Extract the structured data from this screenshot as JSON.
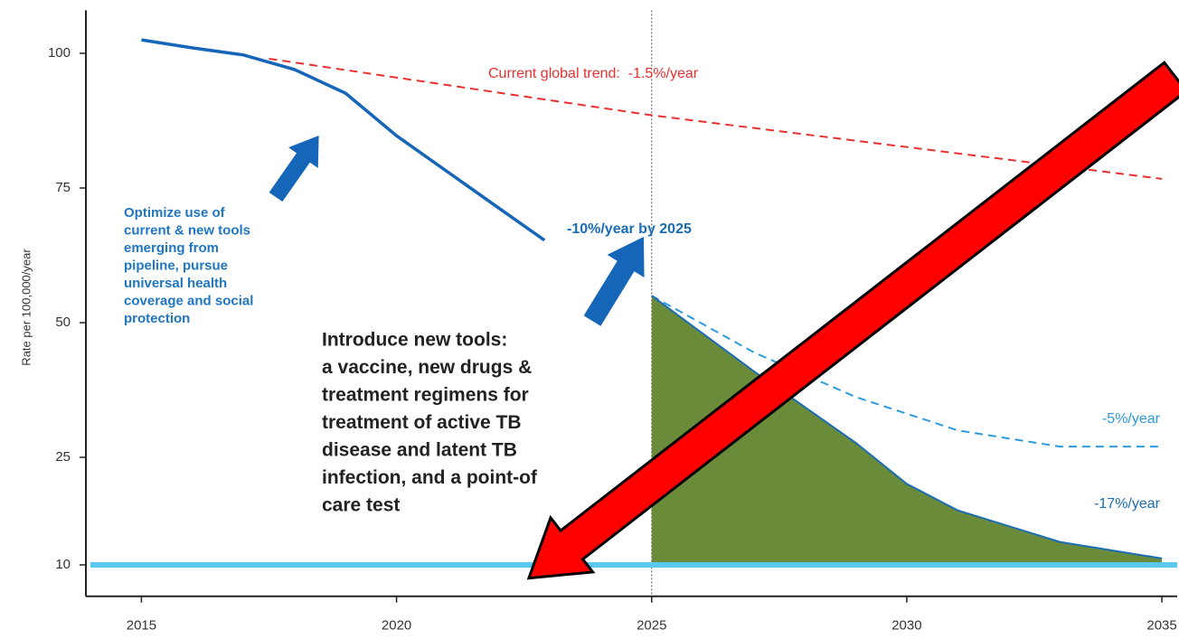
{
  "chart_data": {
    "type": "line",
    "y_label": "Rate per 100,000/year",
    "xlim": [
      2014,
      2035.3
    ],
    "xticks": [
      2015,
      2020,
      2025,
      2030,
      2035
    ],
    "ylim": [
      6,
      108
    ],
    "yticks": [
      10,
      25,
      50,
      75,
      100
    ],
    "vline": 2025,
    "series": [
      {
        "color": "#1565b8",
        "style": "solid",
        "x": [
          2015,
          2016,
          2017,
          2018,
          2019,
          2020,
          2021,
          2022,
          2022.9
        ],
        "values": [
          102.5,
          101,
          99.7,
          97,
          92.6,
          84.7,
          78,
          71.3,
          65.3
        ]
      },
      {
        "name": "Current global trend:  -1.5%/year",
        "color": "#e8312f",
        "style": "dashed",
        "x": [
          2017.5,
          2025,
          2035
        ],
        "values": [
          99,
          88.5,
          76.7
        ]
      },
      {
        "name": "-5%/year",
        "color": "#2a9be0",
        "style": "dashed",
        "x": [
          2025,
          2027,
          2029,
          2031,
          2033,
          2035
        ],
        "values": [
          55,
          44.5,
          36.2,
          30,
          27,
          27
        ]
      },
      {
        "name": "-17%/year",
        "color": "#1a6cb5",
        "fill": "#6a8c3a",
        "style": "area",
        "x": [
          2025,
          2027,
          2029,
          2030,
          2031,
          2033,
          2035
        ],
        "values": [
          55,
          41,
          27.7,
          21.3,
          17.6,
          13.2,
          10.9
        ]
      },
      {
        "color": "#5bc8f0",
        "style": "target",
        "x": [
          2014,
          2035.3
        ],
        "values": [
          10,
          10
        ]
      }
    ],
    "annotations": [
      "-10%/year by 2025",
      [
        "Optimize use of",
        "current & new tools",
        "emerging from",
        "pipeline, pursue",
        "universal health",
        "coverage and social",
        "protection"
      ],
      [
        "Introduce new tools:",
        "a vaccine, new drugs &",
        "treatment regimens for",
        "treatment of active TB",
        "disease and latent TB",
        "infection, and a point-of",
        "care test"
      ]
    ]
  }
}
